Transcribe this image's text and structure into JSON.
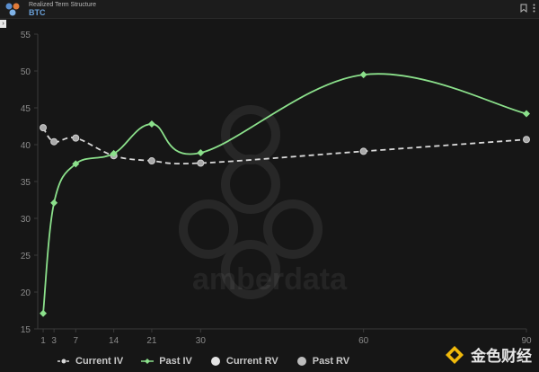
{
  "header": {
    "title": "Realized Term Structure",
    "subtitle": "BTC"
  },
  "colors": {
    "background": "#161616",
    "current_iv": "#d9d9d9",
    "past_iv": "#8be08b",
    "current_rv": "#e4e4e4",
    "past_rv": "#bdbdbd",
    "grid": "#2b2b2b"
  },
  "watermark": {
    "text": "amberdata",
    "badge_text": "金色财经"
  },
  "legend": {
    "items": [
      {
        "label": "Current IV",
        "icon": "dashed-line-circle"
      },
      {
        "label": "Past IV",
        "icon": "line-diamond"
      },
      {
        "label": "Current RV",
        "icon": "circle"
      },
      {
        "label": "Past RV",
        "icon": "circle"
      }
    ]
  },
  "chart_data": {
    "type": "line",
    "x": [
      1,
      3,
      7,
      14,
      21,
      30,
      60,
      90
    ],
    "x_ticks": [
      "1",
      "3",
      "7",
      "14",
      "21",
      "30",
      "60",
      "90"
    ],
    "y_ticks": [
      "15",
      "20",
      "25",
      "30",
      "35",
      "40",
      "45",
      "50",
      "55"
    ],
    "ylim": [
      15,
      55
    ],
    "xlim": [
      0,
      90
    ],
    "grid": false,
    "legend_position": "bottom",
    "series": [
      {
        "name": "Current IV",
        "points": [
          [
            1,
            42.3
          ],
          [
            3,
            40.4
          ],
          [
            7,
            40.9
          ],
          [
            14,
            38.5
          ],
          [
            21,
            37.8
          ],
          [
            30,
            37.5
          ],
          [
            60,
            39.1
          ],
          [
            90,
            40.7
          ]
        ]
      },
      {
        "name": "Past IV",
        "points": [
          [
            1,
            17.1
          ],
          [
            3,
            32.1
          ],
          [
            7,
            37.4
          ],
          [
            14,
            38.8
          ],
          [
            21,
            42.8
          ],
          [
            30,
            38.9
          ],
          [
            60,
            49.5
          ],
          [
            90,
            44.2
          ]
        ]
      },
      {
        "name": "Current RV",
        "points": []
      },
      {
        "name": "Past RV",
        "points": []
      }
    ]
  }
}
